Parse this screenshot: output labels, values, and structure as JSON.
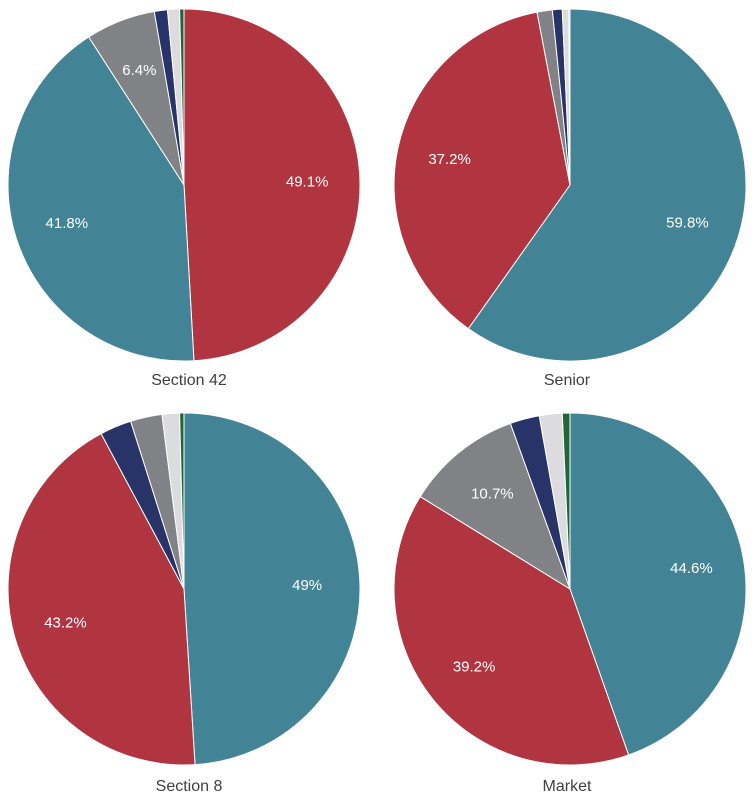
{
  "colors": {
    "red": "#b03540",
    "teal": "#428496",
    "gray": "#818286",
    "navy": "#283468",
    "light": "#dcdcdf",
    "green": "#23653a",
    "label": "#ffffff",
    "border": "#ffffff"
  },
  "chart_data": [
    {
      "type": "pie",
      "caption": "Section 42",
      "slices": [
        {
          "value": 49.1,
          "label": "49.1%",
          "color": "red"
        },
        {
          "value": 41.8,
          "label": "41.8%",
          "color": "teal"
        },
        {
          "value": 6.4,
          "label": "6.4%",
          "color": "gray"
        },
        {
          "value": 1.2,
          "label": "",
          "color": "navy"
        },
        {
          "value": 1.1,
          "label": "",
          "color": "light"
        },
        {
          "value": 0.4,
          "label": "",
          "color": "green"
        }
      ]
    },
    {
      "type": "pie",
      "caption": "Senior",
      "slices": [
        {
          "value": 59.8,
          "label": "59.8%",
          "color": "teal"
        },
        {
          "value": 37.2,
          "label": "37.2%",
          "color": "red"
        },
        {
          "value": 1.4,
          "label": "",
          "color": "gray"
        },
        {
          "value": 0.9,
          "label": "",
          "color": "navy"
        },
        {
          "value": 0.6,
          "label": "",
          "color": "light"
        },
        {
          "value": 0.1,
          "label": "",
          "color": "green"
        }
      ]
    },
    {
      "type": "pie",
      "caption": "Section 8",
      "slices": [
        {
          "value": 49.0,
          "label": "49%",
          "color": "teal"
        },
        {
          "value": 43.2,
          "label": "43.2%",
          "color": "red"
        },
        {
          "value": 2.9,
          "label": "",
          "color": "navy"
        },
        {
          "value": 2.9,
          "label": "",
          "color": "gray"
        },
        {
          "value": 1.6,
          "label": "",
          "color": "light"
        },
        {
          "value": 0.4,
          "label": "",
          "color": "green"
        }
      ]
    },
    {
      "type": "pie",
      "caption": "Market",
      "slices": [
        {
          "value": 44.6,
          "label": "44.6%",
          "color": "teal"
        },
        {
          "value": 39.2,
          "label": "39.2%",
          "color": "red"
        },
        {
          "value": 10.7,
          "label": "10.7%",
          "color": "gray"
        },
        {
          "value": 2.7,
          "label": "",
          "color": "navy"
        },
        {
          "value": 2.1,
          "label": "",
          "color": "light"
        },
        {
          "value": 0.7,
          "label": "",
          "color": "green"
        }
      ]
    }
  ]
}
